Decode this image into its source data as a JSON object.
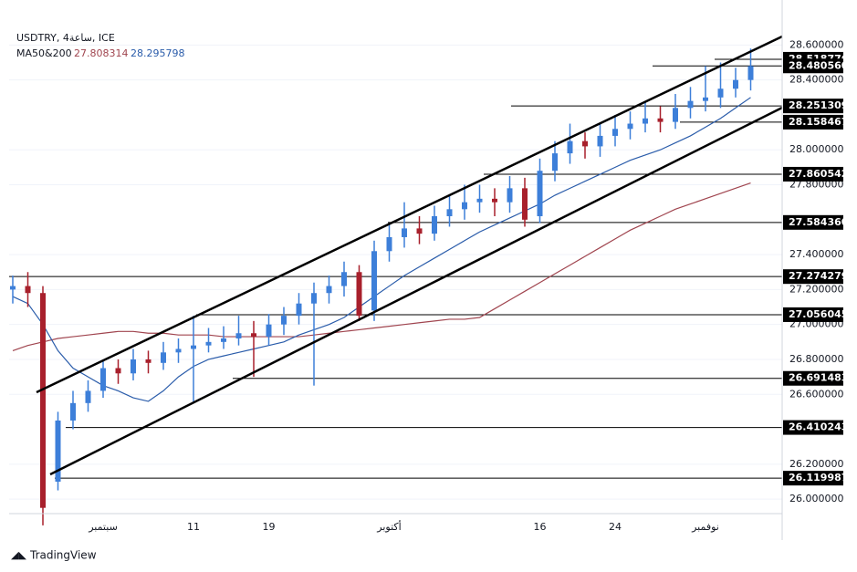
{
  "chart_data": {
    "type": "candlestick",
    "title": "USDTRY, 4ساعة, ICE",
    "ma_legend": {
      "label": "MA50&200",
      "values": [
        27.808314,
        28.295798
      ],
      "colors": [
        "#a0454f",
        "#2a5caa"
      ]
    },
    "brand": "TradingView",
    "categories": [
      null,
      null,
      null,
      null,
      null,
      null,
      "سبتمبر",
      null,
      null,
      null,
      null,
      null,
      "11",
      null,
      null,
      null,
      null,
      "19",
      null,
      null,
      null,
      null,
      null,
      null,
      null,
      "أكتوبر",
      null,
      null,
      null,
      null,
      null,
      null,
      null,
      null,
      null,
      "16",
      null,
      null,
      null,
      null,
      "24",
      null,
      null,
      null,
      null,
      null,
      "نوفمبر",
      null,
      null,
      null
    ],
    "open": [
      27.2,
      27.22,
      27.18,
      26.1,
      26.45,
      26.55,
      26.62,
      26.75,
      26.72,
      26.8,
      26.78,
      26.84,
      26.86,
      26.88,
      26.9,
      26.92,
      26.95,
      26.93,
      27.0,
      27.05,
      27.12,
      27.18,
      27.22,
      27.3,
      27.08,
      27.42,
      27.5,
      27.55,
      27.52,
      27.62,
      27.66,
      27.7,
      27.72,
      27.7,
      27.78,
      27.62,
      27.88,
      27.98,
      28.05,
      28.02,
      28.08,
      28.12,
      28.15,
      28.18,
      28.16,
      28.24,
      28.28,
      28.3,
      28.35,
      28.4
    ],
    "high": [
      27.28,
      27.3,
      27.22,
      26.5,
      26.62,
      26.68,
      26.8,
      26.8,
      26.86,
      26.85,
      26.9,
      26.92,
      27.05,
      26.98,
      26.99,
      27.05,
      27.02,
      27.06,
      27.1,
      27.18,
      27.24,
      27.28,
      27.36,
      27.34,
      27.48,
      27.58,
      27.7,
      27.62,
      27.68,
      27.74,
      27.8,
      27.8,
      27.78,
      27.85,
      27.84,
      27.95,
      28.05,
      28.15,
      28.1,
      28.15,
      28.2,
      28.22,
      28.28,
      28.25,
      28.32,
      28.36,
      28.48,
      28.5,
      28.47,
      28.58
    ],
    "low": [
      27.12,
      27.1,
      25.85,
      26.05,
      26.4,
      26.5,
      26.58,
      26.66,
      26.68,
      26.72,
      26.74,
      26.78,
      26.55,
      26.84,
      26.86,
      26.88,
      26.7,
      26.88,
      26.94,
      27.0,
      26.65,
      27.12,
      27.16,
      27.02,
      27.02,
      27.36,
      27.44,
      27.46,
      27.48,
      27.56,
      27.6,
      27.64,
      27.62,
      27.64,
      27.56,
      27.58,
      27.82,
      27.92,
      27.95,
      27.96,
      28.02,
      28.06,
      28.1,
      28.1,
      28.12,
      28.18,
      28.22,
      28.24,
      28.3,
      28.34
    ],
    "close": [
      27.22,
      27.18,
      25.95,
      26.45,
      26.55,
      26.62,
      26.75,
      26.72,
      26.8,
      26.78,
      26.84,
      26.86,
      26.88,
      26.9,
      26.92,
      26.95,
      26.93,
      27.0,
      27.05,
      27.12,
      27.18,
      27.22,
      27.3,
      27.05,
      27.42,
      27.5,
      27.55,
      27.52,
      27.62,
      27.66,
      27.7,
      27.72,
      27.7,
      27.78,
      27.6,
      27.88,
      27.98,
      28.05,
      28.02,
      28.08,
      28.12,
      28.15,
      28.18,
      28.16,
      28.24,
      28.28,
      28.3,
      28.35,
      28.4,
      28.48
    ],
    "up_color": "#3d7fd9",
    "down_color": "#a8202c",
    "ma200": [
      26.85,
      26.88,
      26.9,
      26.92,
      26.93,
      26.94,
      26.95,
      26.96,
      26.96,
      26.95,
      26.95,
      26.94,
      26.94,
      26.94,
      26.93,
      26.93,
      26.93,
      26.93,
      26.93,
      26.93,
      26.94,
      26.95,
      26.96,
      26.97,
      26.98,
      26.99,
      27.0,
      27.01,
      27.02,
      27.03,
      27.03,
      27.04,
      27.09,
      27.14,
      27.19,
      27.24,
      27.29,
      27.34,
      27.39,
      27.44,
      27.49,
      27.54,
      27.58,
      27.62,
      27.66,
      27.69,
      27.72,
      27.75,
      27.78,
      27.81
    ],
    "ma50": [
      27.16,
      27.12,
      27.0,
      26.85,
      26.75,
      26.7,
      26.65,
      26.62,
      26.58,
      26.56,
      26.62,
      26.7,
      26.76,
      26.8,
      26.82,
      26.84,
      26.86,
      26.88,
      26.9,
      26.94,
      26.97,
      27.0,
      27.04,
      27.1,
      27.16,
      27.22,
      27.28,
      27.33,
      27.38,
      27.43,
      27.48,
      27.53,
      27.57,
      27.61,
      27.65,
      27.69,
      27.74,
      27.78,
      27.82,
      27.86,
      27.9,
      27.94,
      27.97,
      28.0,
      28.04,
      28.08,
      28.13,
      28.18,
      28.24,
      28.3
    ],
    "levels": [
      {
        "value": 28.518776,
        "label": "28.518776"
      },
      {
        "value": 28.48056,
        "label": "28.480560"
      },
      {
        "value": 28.251309,
        "label": "28.251309"
      },
      {
        "value": 28.158467,
        "label": "28.158467"
      },
      {
        "value": 27.860542,
        "label": "27.860542"
      },
      {
        "value": 27.58436,
        "label": "27.584360"
      },
      {
        "value": 27.274279,
        "label": "27.274279"
      },
      {
        "value": 27.056045,
        "label": "27.056045"
      },
      {
        "value": 26.691483,
        "label": "26.691483"
      },
      {
        "value": 26.410243,
        "label": "26.410243"
      },
      {
        "value": 26.119987,
        "label": "26.119987"
      }
    ],
    "ylim": [
      25.917,
      28.858
    ],
    "yticks": [
      {
        "value": 28.6,
        "label": "28.600000"
      },
      {
        "value": 28.4,
        "label": "28.400000"
      },
      {
        "value": 28.0,
        "label": "28.000000"
      },
      {
        "value": 27.8,
        "label": "27.800000"
      },
      {
        "value": 27.4,
        "label": "27.400000"
      },
      {
        "value": 27.2,
        "label": "27.200000"
      },
      {
        "value": 27.0,
        "label": "27.000000"
      },
      {
        "value": 26.8,
        "label": "26.800000"
      },
      {
        "value": 26.6,
        "label": "26.600000"
      },
      {
        "value": 26.2,
        "label": "26.200000"
      },
      {
        "value": 26.0,
        "label": "26.000000"
      }
    ]
  }
}
